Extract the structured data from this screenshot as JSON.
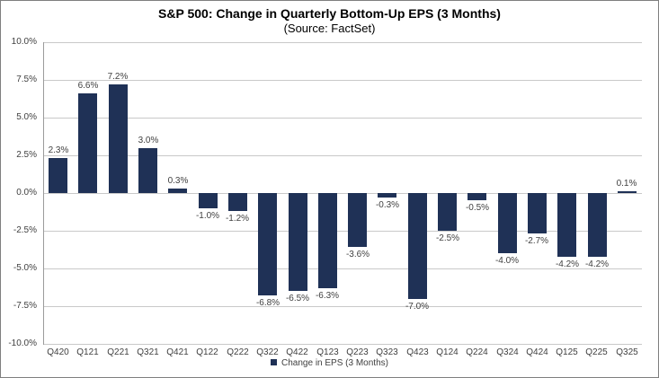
{
  "chart_data": {
    "type": "bar",
    "title": "S&P 500: Change in Quarterly Bottom-Up EPS (3 Months)",
    "subtitle": "(Source: FactSet)",
    "categories": [
      "Q420",
      "Q121",
      "Q221",
      "Q321",
      "Q421",
      "Q122",
      "Q222",
      "Q322",
      "Q422",
      "Q123",
      "Q223",
      "Q323",
      "Q423",
      "Q124",
      "Q224",
      "Q324",
      "Q424",
      "Q125",
      "Q225",
      "Q325"
    ],
    "values": [
      2.3,
      6.6,
      7.2,
      3.0,
      0.3,
      -1.0,
      -1.2,
      -6.8,
      -6.5,
      -6.3,
      -3.6,
      -0.3,
      -7.0,
      -2.5,
      -0.5,
      -4.0,
      -2.7,
      -4.2,
      -4.2,
      0.1
    ],
    "value_labels": [
      "2.3%",
      "6.6%",
      "7.2%",
      "3.0%",
      "0.3%",
      "-1.0%",
      "-1.2%",
      "-6.8%",
      "-6.5%",
      "-6.3%",
      "-3.6%",
      "-0.3%",
      "-7.0%",
      "-2.5%",
      "-0.5%",
      "-4.0%",
      "-2.7%",
      "-4.2%",
      "-4.2%",
      "0.1%"
    ],
    "legend_entries": [
      "Change in EPS (3 Months)"
    ],
    "legend_position": "bottom",
    "xlabel": "",
    "ylabel": "",
    "ylim": [
      -10,
      10
    ],
    "ytick_step": 2.5,
    "ytick_labels": [
      "10.0%",
      "7.5%",
      "5.0%",
      "2.5%",
      "0.0%",
      "-2.5%",
      "-5.0%",
      "-7.5%",
      "-10.0%"
    ],
    "grid": true,
    "colors": {
      "bar": "#1f3156",
      "gridline": "#c9c9c9",
      "axis": "#9b9b9b",
      "label": "#3f3f3f",
      "title": "#000000",
      "frame_border": "#7f7f7f",
      "background": "#ffffff"
    }
  }
}
